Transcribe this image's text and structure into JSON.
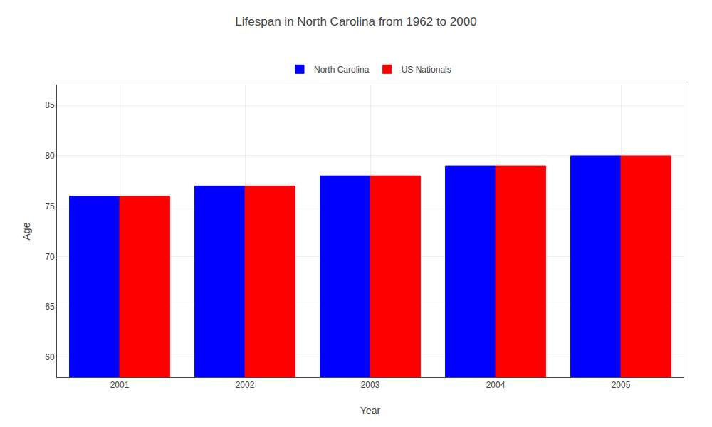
{
  "chart_data": {
    "type": "bar",
    "title": "Lifespan in North Carolina from 1962 to 2000",
    "xlabel": "Year",
    "ylabel": "Age",
    "categories": [
      "2001",
      "2002",
      "2003",
      "2004",
      "2005"
    ],
    "series": [
      {
        "name": "North Carolina",
        "color": "blue",
        "values": [
          76,
          77,
          78,
          79,
          80
        ]
      },
      {
        "name": "US Nationals",
        "color": "red",
        "values": [
          76,
          77,
          78,
          79,
          80
        ]
      }
    ],
    "ylim": [
      58,
      87
    ],
    "yticks": [
      60,
      65,
      70,
      75,
      80,
      85
    ],
    "grid": true,
    "legend": "top"
  }
}
